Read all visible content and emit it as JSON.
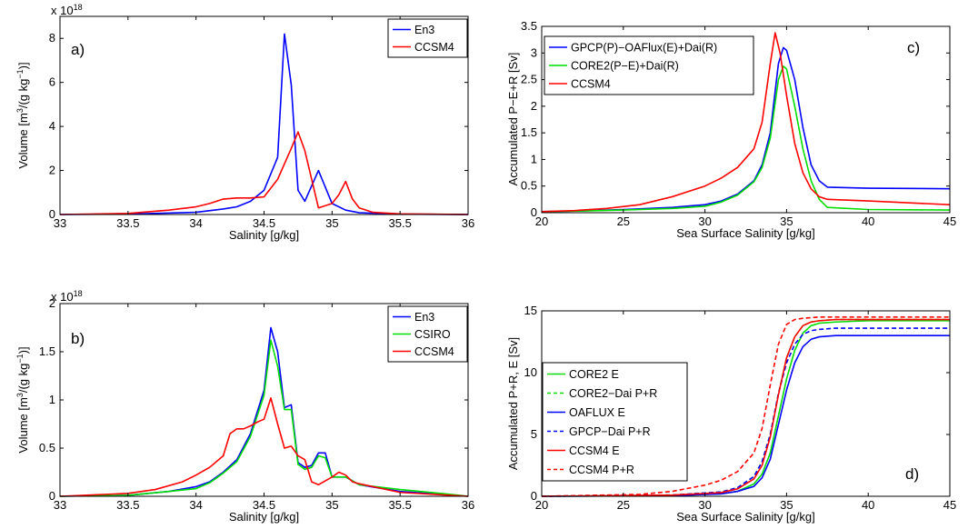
{
  "chart_data": [
    {
      "type": "line",
      "panel_label": "a)",
      "xlabel": "Salinity [g/kg]",
      "ylabel_main": "Volume [m",
      "ylabel_sup": "3",
      "ylabel_mid": "/(g kg",
      "ylabel_sup2": "−1",
      "ylabel_end": ")]",
      "exponent_base": "x 10",
      "exponent_power": "18",
      "xlim": [
        33,
        36
      ],
      "ylim": [
        0,
        9
      ],
      "xticks": [
        "33",
        "33.5",
        "34",
        "34.5",
        "35",
        "35.5",
        "36"
      ],
      "yticks": [
        "0",
        "2",
        "4",
        "6",
        "8"
      ],
      "legend_position": "top-right",
      "series": [
        {
          "name": "En3",
          "color": "#0000ff",
          "dash": false,
          "x": [
            33.0,
            33.5,
            34.0,
            34.2,
            34.3,
            34.4,
            34.5,
            34.6,
            34.65,
            34.7,
            34.75,
            34.8,
            34.9,
            35.0,
            35.1,
            35.2,
            35.5,
            36.0
          ],
          "y": [
            0,
            0.02,
            0.1,
            0.25,
            0.35,
            0.6,
            1.1,
            2.6,
            8.2,
            5.9,
            1.1,
            0.6,
            2.0,
            0.5,
            0.2,
            0.08,
            0.02,
            0
          ]
        },
        {
          "name": "CCSM4",
          "color": "#ff0000",
          "dash": false,
          "x": [
            33.0,
            33.5,
            33.8,
            34.0,
            34.1,
            34.2,
            34.3,
            34.4,
            34.5,
            34.6,
            34.7,
            34.75,
            34.8,
            34.9,
            35.0,
            35.05,
            35.1,
            35.15,
            35.2,
            35.3,
            35.5,
            36.0
          ],
          "y": [
            0,
            0.05,
            0.2,
            0.35,
            0.5,
            0.7,
            0.75,
            0.75,
            0.8,
            1.6,
            3.0,
            3.75,
            2.9,
            0.3,
            0.5,
            0.9,
            1.5,
            0.7,
            0.3,
            0.1,
            0.03,
            0
          ]
        }
      ]
    },
    {
      "type": "line",
      "panel_label": "b)",
      "xlabel": "Salinity [g/kg]",
      "ylabel_main": "Volume [m",
      "ylabel_sup": "3",
      "ylabel_mid": "/(g kg",
      "ylabel_sup2": "−1",
      "ylabel_end": ")]",
      "exponent_base": "x 10",
      "exponent_power": "18",
      "xlim": [
        33,
        36
      ],
      "ylim": [
        0,
        2
      ],
      "xticks": [
        "33",
        "33.5",
        "34",
        "34.5",
        "35",
        "35.5",
        "36"
      ],
      "yticks": [
        "0",
        "0.5",
        "1",
        "1.5",
        "2"
      ],
      "legend_position": "top-right",
      "series": [
        {
          "name": "En3",
          "color": "#0000ff",
          "dash": false,
          "x": [
            33.0,
            33.5,
            33.8,
            34.0,
            34.1,
            34.2,
            34.3,
            34.4,
            34.5,
            34.55,
            34.6,
            34.65,
            34.7,
            34.75,
            34.8,
            34.85,
            34.9,
            34.95,
            35.0,
            35.1,
            35.2,
            35.5,
            36.0
          ],
          "y": [
            0,
            0.01,
            0.05,
            0.1,
            0.15,
            0.25,
            0.38,
            0.65,
            1.1,
            1.75,
            1.5,
            0.92,
            0.95,
            0.35,
            0.3,
            0.32,
            0.45,
            0.45,
            0.2,
            0.2,
            0.12,
            0.05,
            0
          ]
        },
        {
          "name": "CSIRO",
          "color": "#00dd00",
          "dash": false,
          "x": [
            33.0,
            33.5,
            33.8,
            34.0,
            34.1,
            34.2,
            34.3,
            34.4,
            34.5,
            34.55,
            34.6,
            34.65,
            34.7,
            34.75,
            34.8,
            34.85,
            34.9,
            34.95,
            35.0,
            35.1,
            35.2,
            35.5,
            35.8,
            36.0
          ],
          "y": [
            0,
            0.01,
            0.05,
            0.08,
            0.14,
            0.24,
            0.36,
            0.62,
            1.05,
            1.62,
            1.35,
            0.9,
            0.9,
            0.33,
            0.28,
            0.3,
            0.42,
            0.4,
            0.2,
            0.2,
            0.12,
            0.07,
            0.03,
            0
          ]
        },
        {
          "name": "CCSM4",
          "color": "#ff0000",
          "dash": false,
          "x": [
            33.0,
            33.5,
            33.7,
            33.9,
            34.0,
            34.1,
            34.2,
            34.25,
            34.3,
            34.35,
            34.4,
            34.45,
            34.5,
            34.55,
            34.6,
            34.65,
            34.7,
            34.75,
            34.8,
            34.85,
            34.9,
            35.0,
            35.05,
            35.1,
            35.15,
            35.2,
            35.5,
            36.0
          ],
          "y": [
            0,
            0.03,
            0.07,
            0.15,
            0.22,
            0.3,
            0.42,
            0.65,
            0.7,
            0.7,
            0.73,
            0.77,
            0.8,
            1.02,
            0.75,
            0.5,
            0.52,
            0.42,
            0.38,
            0.15,
            0.12,
            0.2,
            0.25,
            0.22,
            0.15,
            0.13,
            0.04,
            0
          ]
        }
      ]
    },
    {
      "type": "line",
      "panel_label": "c)",
      "xlabel": "Sea Surface Salinity [g/kg]",
      "ylabel": "Accumulated P−E+R [Sv]",
      "xlim": [
        20,
        45
      ],
      "ylim": [
        0,
        3.5
      ],
      "xticks": [
        "20",
        "25",
        "30",
        "35",
        "40",
        "45"
      ],
      "yticks": [
        "0",
        "0.5",
        "1",
        "1.5",
        "2",
        "2.5",
        "3",
        "3.5"
      ],
      "legend_position": "top-left",
      "series": [
        {
          "name": "GPCP(P)−OAFlux(E)+Dai(R)",
          "color": "#0000ff",
          "dash": false,
          "x": [
            20,
            22,
            25,
            28,
            30,
            31,
            32,
            33,
            33.5,
            34,
            34.5,
            34.8,
            35,
            35.5,
            36,
            36.5,
            37,
            37.5,
            40,
            45
          ],
          "y": [
            0.02,
            0.03,
            0.06,
            0.1,
            0.15,
            0.22,
            0.35,
            0.6,
            0.9,
            1.5,
            2.8,
            3.1,
            3.05,
            2.5,
            1.6,
            0.9,
            0.6,
            0.48,
            0.46,
            0.45
          ]
        },
        {
          "name": "CORE2(P−E)+Dai(R)",
          "color": "#00dd00",
          "dash": false,
          "x": [
            20,
            22,
            25,
            28,
            30,
            31,
            32,
            33,
            33.5,
            34,
            34.5,
            34.8,
            35,
            35.5,
            36,
            36.5,
            37,
            37.5,
            40,
            45
          ],
          "y": [
            0.02,
            0.03,
            0.05,
            0.08,
            0.12,
            0.2,
            0.33,
            0.58,
            0.85,
            1.4,
            2.5,
            2.75,
            2.7,
            2.0,
            1.2,
            0.6,
            0.25,
            0.1,
            0.06,
            0.05
          ]
        },
        {
          "name": "CCSM4",
          "color": "#ff0000",
          "dash": false,
          "x": [
            20,
            22,
            24,
            26,
            28,
            30,
            31,
            32,
            33,
            33.5,
            34,
            34.3,
            34.6,
            35,
            35.5,
            36,
            36.5,
            37,
            37.5,
            40,
            45
          ],
          "y": [
            0.02,
            0.04,
            0.08,
            0.15,
            0.3,
            0.5,
            0.65,
            0.85,
            1.2,
            1.7,
            2.8,
            3.38,
            3.0,
            2.2,
            1.3,
            0.75,
            0.45,
            0.3,
            0.25,
            0.22,
            0.15
          ]
        }
      ]
    },
    {
      "type": "line",
      "panel_label": "d)",
      "xlabel": "Sea Surface Salinity [g/kg]",
      "ylabel": "Accumulated P+R, E [Sv]",
      "xlim": [
        20,
        45
      ],
      "ylim": [
        0,
        15
      ],
      "xticks": [
        "20",
        "25",
        "30",
        "35",
        "40",
        "45"
      ],
      "yticks": [
        "0",
        "5",
        "10",
        "15"
      ],
      "legend_position": "middle-left",
      "series": [
        {
          "name": "CORE2 E",
          "color": "#00dd00",
          "dash": false,
          "x": [
            20,
            28,
            31,
            32,
            33,
            33.5,
            34,
            34.5,
            35,
            35.5,
            36,
            36.5,
            37,
            38,
            40,
            45
          ],
          "y": [
            0,
            0.05,
            0.2,
            0.4,
            1.0,
            1.8,
            3.5,
            6.5,
            9.5,
            11.8,
            13.2,
            13.8,
            14.0,
            14.1,
            14.2,
            14.2
          ]
        },
        {
          "name": "CORE2−Dai P+R",
          "color": "#00dd00",
          "dash": true,
          "x": [
            20,
            28,
            31,
            32,
            33,
            33.5,
            34,
            34.5,
            35,
            35.5,
            36,
            36.5,
            37,
            38,
            40,
            45
          ],
          "y": [
            0,
            0.1,
            0.35,
            0.7,
            1.6,
            2.8,
            5.0,
            8.3,
            11.2,
            12.9,
            13.8,
            14.1,
            14.2,
            14.3,
            14.3,
            14.3
          ]
        },
        {
          "name": "OAFLUX E",
          "color": "#0000ff",
          "dash": false,
          "x": [
            20,
            28,
            31,
            32,
            33,
            33.5,
            34,
            34.5,
            35,
            35.5,
            36,
            36.5,
            37,
            38,
            40,
            45
          ],
          "y": [
            0,
            0.05,
            0.2,
            0.4,
            0.8,
            1.5,
            3.0,
            5.8,
            8.6,
            10.8,
            12.1,
            12.7,
            12.9,
            13.0,
            13.0,
            13.0
          ]
        },
        {
          "name": "GPCP−Dai P+R",
          "color": "#0000ff",
          "dash": true,
          "x": [
            20,
            28,
            31,
            32,
            33,
            33.5,
            34,
            34.5,
            35,
            35.5,
            36,
            36.5,
            37,
            38,
            40,
            45
          ],
          "y": [
            0,
            0.1,
            0.35,
            0.7,
            1.6,
            2.8,
            5.0,
            8.3,
            10.8,
            12.3,
            13.1,
            13.4,
            13.5,
            13.6,
            13.6,
            13.6
          ]
        },
        {
          "name": "CCSM4 E",
          "color": "#ff0000",
          "dash": false,
          "x": [
            20,
            28,
            31,
            32,
            33,
            33.5,
            34,
            34.5,
            35,
            35.5,
            36,
            36.5,
            37,
            38,
            40,
            45
          ],
          "y": [
            0,
            0.1,
            0.3,
            0.6,
            1.4,
            2.5,
            4.8,
            8.2,
            11.2,
            12.9,
            13.8,
            14.1,
            14.2,
            14.3,
            14.3,
            14.3
          ]
        },
        {
          "name": "CCSM4 P+R",
          "color": "#ff0000",
          "dash": true,
          "x": [
            20,
            26,
            28,
            30,
            31,
            32,
            33,
            33.5,
            34,
            34.5,
            35,
            35.5,
            36,
            37,
            38,
            40,
            45
          ],
          "y": [
            0,
            0.15,
            0.4,
            0.9,
            1.3,
            2.0,
            3.5,
            5.5,
            9.0,
            12.3,
            13.9,
            14.3,
            14.4,
            14.5,
            14.5,
            14.5,
            14.5
          ]
        }
      ]
    }
  ]
}
